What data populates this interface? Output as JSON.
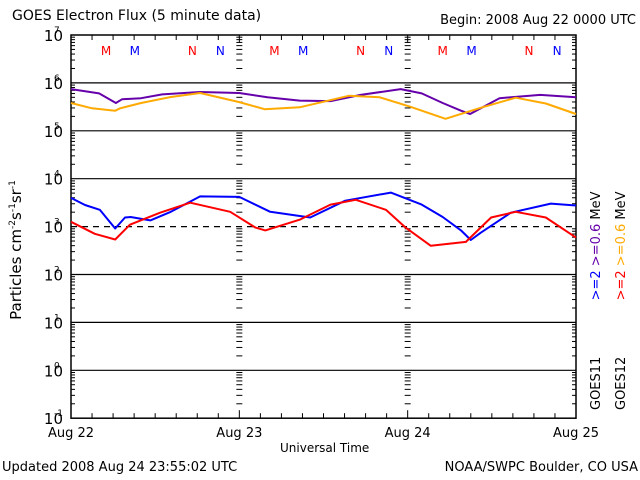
{
  "header": {
    "title": "GOES Electron Flux (5 minute data)",
    "begin": "Begin: 2008 Aug 22 0000 UTC"
  },
  "footer": {
    "updated": "Updated 2008 Aug 24 23:55:02 UTC",
    "credit": "NOAA/SWPC Boulder, CO USA"
  },
  "colors": {
    "goes11_ge2": "#0000ff",
    "goes11_ge06": "#6600aa",
    "goes12_ge2": "#ff0000",
    "goes12_ge06": "#ffaa00",
    "axis": "#000000"
  },
  "legend": {
    "goes11_label": "GOES11",
    "goes12_label": "GOES12",
    "goes11_ge2": ">=2",
    "goes11_ge06": ">=0.6",
    "goes12_ge2": ">=2",
    "goes12_ge06": ">=0.6",
    "unit": "MeV"
  },
  "chart_data": {
    "type": "line",
    "title": "GOES Electron Flux (5 minute data)",
    "xlabel": "Universal Time",
    "ylabel": "Particles cm^-2 s^-1 sr^-1",
    "yscale": "log",
    "ylim": [
      0.1,
      10000000
    ],
    "xlim_hours": [
      0,
      72
    ],
    "x_ticks": [
      {
        "hour": 0,
        "label": "Aug 22"
      },
      {
        "hour": 24,
        "label": "Aug 23"
      },
      {
        "hour": 48,
        "label": "Aug 24"
      },
      {
        "hour": 72,
        "label": "Aug 25"
      }
    ],
    "y_ticks": [
      {
        "exp": 7,
        "base": "10",
        "sup": "7"
      },
      {
        "exp": 6,
        "base": "10",
        "sup": "6"
      },
      {
        "exp": 5,
        "base": "10",
        "sup": "5"
      },
      {
        "exp": 4,
        "base": "10",
        "sup": "4"
      },
      {
        "exp": 3,
        "base": "10",
        "sup": "3"
      },
      {
        "exp": 2,
        "base": "10",
        "sup": "2"
      },
      {
        "exp": 1,
        "base": "10",
        "sup": "1"
      },
      {
        "exp": 0,
        "base": "10",
        "sup": "0"
      },
      {
        "exp": -1,
        "base": "10",
        "sup": "-1"
      }
    ],
    "grid_lines_exp": [
      6,
      5,
      4,
      2,
      1,
      0
    ],
    "threshold": {
      "value": 1000,
      "style": "dashed"
    },
    "markers": [
      {
        "label": "M",
        "hour": 5.0,
        "color": "red"
      },
      {
        "label": "M",
        "hour": 9.1,
        "color": "blue"
      },
      {
        "label": "N",
        "hour": 17.3,
        "color": "red"
      },
      {
        "label": "N",
        "hour": 21.3,
        "color": "blue"
      },
      {
        "label": "M",
        "hour": 29.0,
        "color": "red"
      },
      {
        "label": "M",
        "hour": 33.1,
        "color": "blue"
      },
      {
        "label": "N",
        "hour": 41.3,
        "color": "red"
      },
      {
        "label": "N",
        "hour": 45.3,
        "color": "blue"
      },
      {
        "label": "M",
        "hour": 53.0,
        "color": "red"
      },
      {
        "label": "M",
        "hour": 57.1,
        "color": "blue"
      },
      {
        "label": "N",
        "hour": 65.3,
        "color": "red"
      },
      {
        "label": "N",
        "hour": 69.3,
        "color": "blue"
      }
    ],
    "series": [
      {
        "name": "GOES11 >=0.6 MeV",
        "color": "goes11_ge06",
        "hours": [
          0,
          4,
          6.4,
          7.3,
          10,
          13,
          18.4,
          24,
          28,
          32.6,
          37,
          41.3,
          47,
          50,
          53,
          55.6,
          56.9,
          61.1,
          66.9,
          72
        ],
        "log10": [
          5.87,
          5.78,
          5.58,
          5.66,
          5.68,
          5.76,
          5.81,
          5.79,
          5.7,
          5.63,
          5.62,
          5.75,
          5.87,
          5.78,
          5.58,
          5.42,
          5.35,
          5.68,
          5.75,
          5.7
        ]
      },
      {
        "name": "GOES12 >=0.6 MeV",
        "color": "goes12_ge06",
        "hours": [
          0,
          3,
          6.3,
          7.0,
          10,
          14,
          18.4,
          24,
          27.6,
          32.6,
          39.6,
          44,
          48.4,
          53.4,
          58.4,
          63.4,
          67.7,
          72
        ],
        "log10": [
          5.58,
          5.47,
          5.42,
          5.47,
          5.58,
          5.7,
          5.79,
          5.6,
          5.45,
          5.49,
          5.73,
          5.7,
          5.5,
          5.25,
          5.48,
          5.69,
          5.57,
          5.35
        ]
      },
      {
        "name": "GOES11 >=2 MeV",
        "color": "goes11_ge2",
        "hours": [
          0,
          2,
          4.1,
          6.3,
          7.7,
          8.5,
          11.3,
          14.1,
          18.4,
          24,
          28.4,
          34.1,
          39.1,
          45.6,
          50,
          53,
          55.6,
          57.0,
          58.4,
          62.7,
          68.4,
          72
        ],
        "log10": [
          3.6,
          3.45,
          3.35,
          2.96,
          3.19,
          3.2,
          3.13,
          3.3,
          3.63,
          3.62,
          3.31,
          3.19,
          3.54,
          3.71,
          3.46,
          3.2,
          2.92,
          2.72,
          2.87,
          3.29,
          3.48,
          3.44
        ]
      },
      {
        "name": "GOES12 >=2 MeV",
        "color": "goes12_ge2",
        "hours": [
          0,
          3.4,
          6.3,
          8.4,
          12.7,
          17.0,
          22.7,
          26.3,
          27.7,
          32.7,
          37,
          40.6,
          44.9,
          47.7,
          51.3,
          56.3,
          59.9,
          63.4,
          67.7,
          72
        ],
        "log10": [
          3.1,
          2.85,
          2.73,
          3.04,
          3.29,
          3.5,
          3.31,
          2.98,
          2.92,
          3.15,
          3.46,
          3.56,
          3.35,
          2.98,
          2.6,
          2.68,
          3.19,
          3.31,
          3.19,
          2.77
        ]
      }
    ]
  }
}
